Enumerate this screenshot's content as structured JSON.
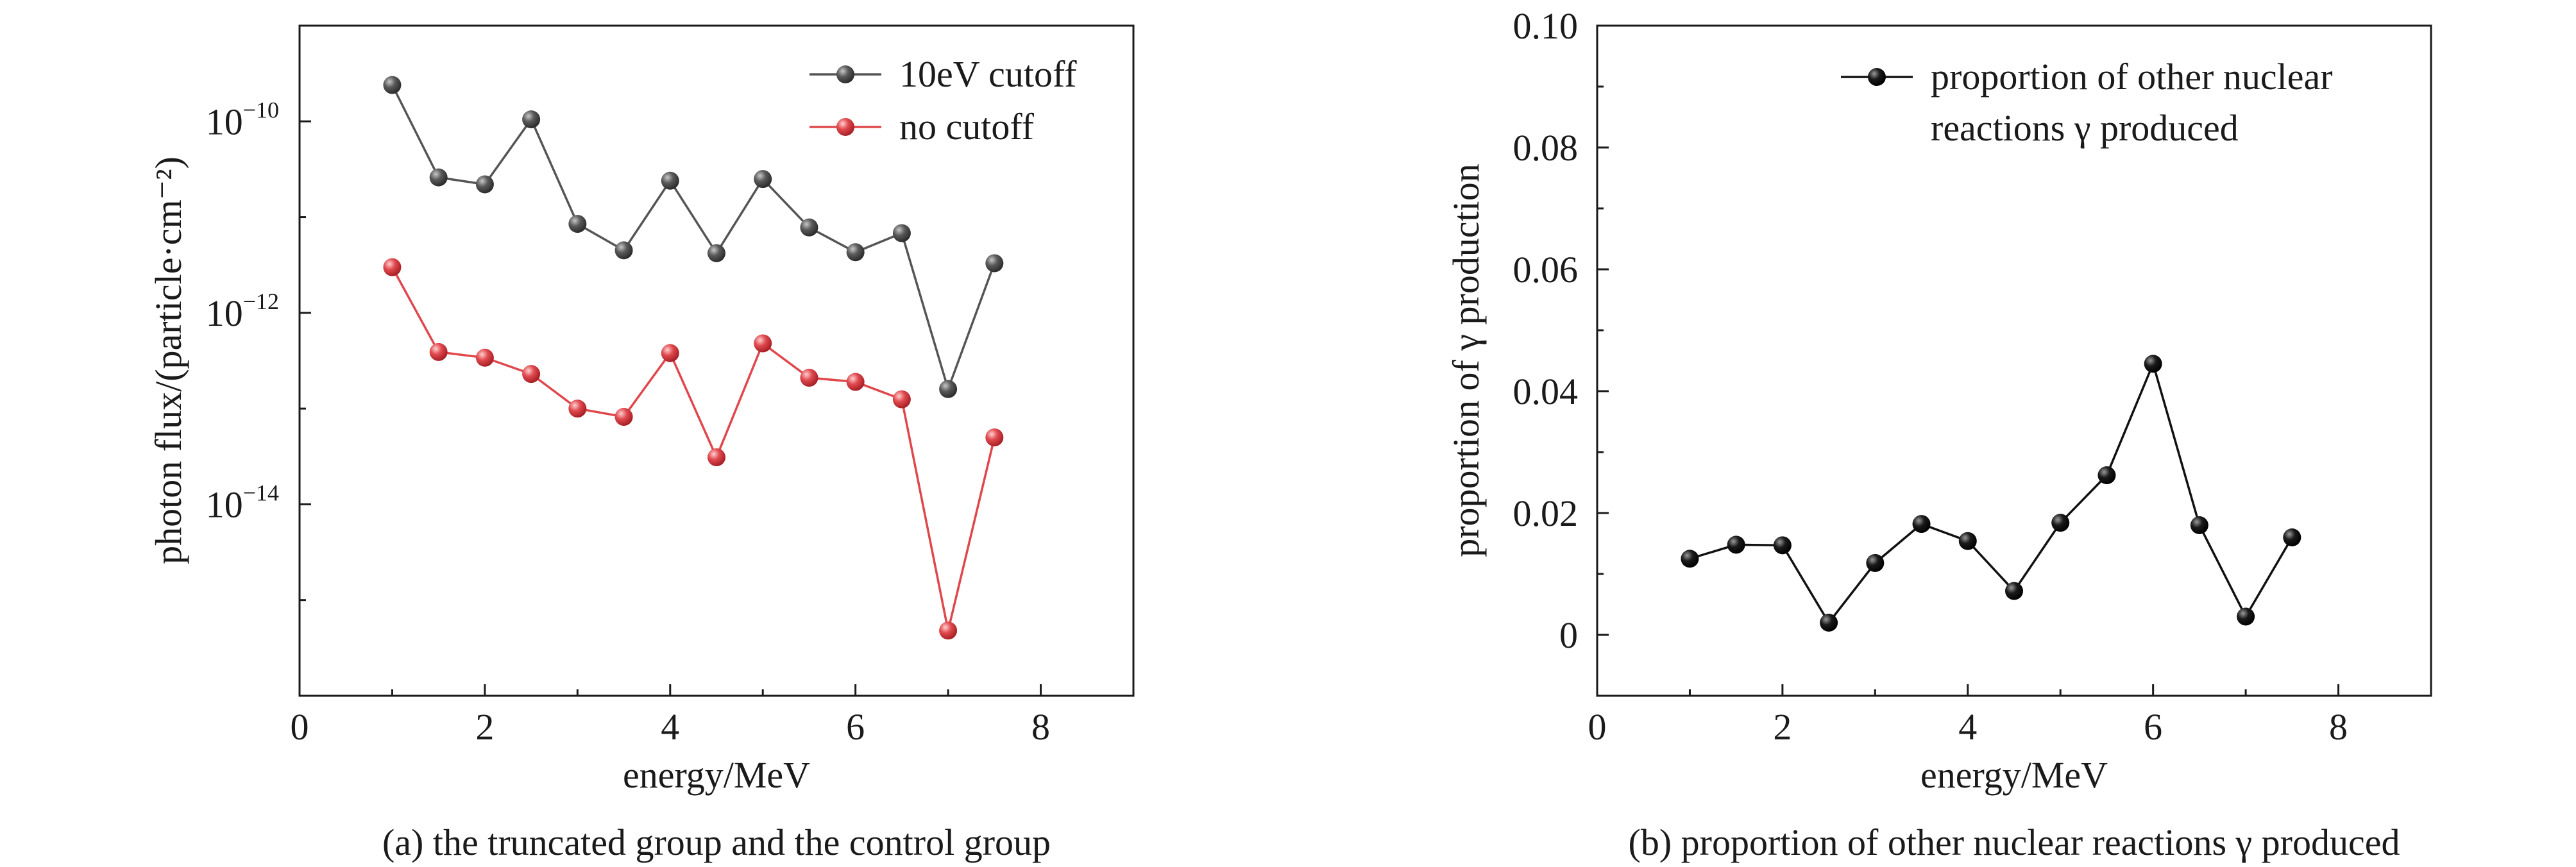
{
  "chart_data": [
    {
      "type": "line",
      "panel": "a",
      "caption": "(a) the truncated group and the control group",
      "xlabel": "energy/MeV",
      "ylabel": "photon flux/(particle·cm⁻²)",
      "xlim": [
        0,
        9
      ],
      "ylim": [
        1e-16,
        1e-09
      ],
      "yscale": "log",
      "x_ticks": [
        "0",
        "2",
        "4",
        "6",
        "8"
      ],
      "y_ticks": [
        {
          "base": "10",
          "exp": "−10",
          "value": 1e-10
        },
        {
          "base": "10",
          "exp": "−12",
          "value": 1e-12
        },
        {
          "base": "10",
          "exp": "−14",
          "value": 1e-14
        }
      ],
      "legend_position": "top-right",
      "grid": false,
      "x": [
        1.0,
        1.5,
        2.0,
        2.5,
        3.0,
        3.5,
        4.0,
        4.5,
        5.0,
        5.5,
        6.0,
        6.5,
        7.0,
        7.5
      ],
      "series": [
        {
          "name": "10eV cutoff",
          "color": "#555555",
          "values": [
            2.4e-10,
            2.6e-11,
            2.2e-11,
            1.05e-10,
            8.5e-12,
            4.5e-12,
            2.4e-11,
            4.2e-12,
            2.5e-11,
            7.8e-12,
            4.3e-12,
            6.8e-12,
            1.6e-13,
            3.3e-12
          ]
        },
        {
          "name": "no cutoff",
          "color": "#e0474c",
          "values": [
            3e-12,
            3.9e-13,
            3.4e-13,
            2.3e-13,
            1e-13,
            8.2e-14,
            3.8e-13,
            3.1e-14,
            4.8e-13,
            2.1e-13,
            1.9e-13,
            1.25e-13,
            4.8e-16,
            5e-14
          ]
        }
      ]
    },
    {
      "type": "line",
      "panel": "b",
      "caption": "(b) proportion of other nuclear reactions γ produced",
      "xlabel": "energy/MeV",
      "ylabel": "proportion of γ production",
      "xlim": [
        0,
        9
      ],
      "ylim": [
        -0.01,
        0.1
      ],
      "x_ticks": [
        "0",
        "2",
        "4",
        "6",
        "8"
      ],
      "y_ticks": [
        "0",
        "0.02",
        "0.04",
        "0.06",
        "0.08",
        "0.10"
      ],
      "legend_position": "top-right",
      "grid": false,
      "x": [
        1.0,
        1.5,
        2.0,
        2.5,
        3.0,
        3.5,
        4.0,
        4.5,
        5.0,
        5.5,
        6.0,
        6.5,
        7.0,
        7.5
      ],
      "series": [
        {
          "name_lines": [
            "proportion of other nuclear",
            "reactions γ produced"
          ],
          "color": "#111111",
          "values": [
            0.0125,
            0.0148,
            0.0147,
            0.002,
            0.0118,
            0.0182,
            0.0154,
            0.0072,
            0.0184,
            0.0262,
            0.0445,
            0.018,
            0.003,
            0.016
          ]
        }
      ]
    }
  ]
}
